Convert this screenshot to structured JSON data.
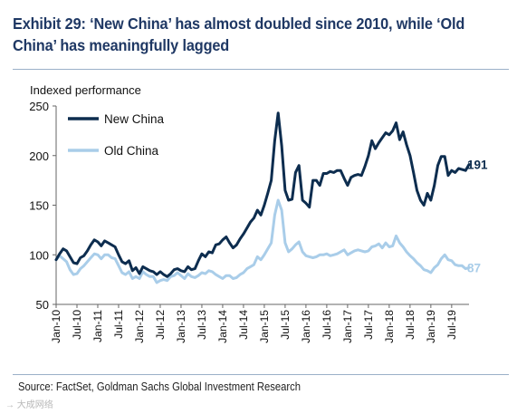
{
  "title": "Exhibit 29: ‘New China’ has almost doubled since 2010, while ‘Old China’ has meaningfully lagged",
  "source": "Source: FactSet, Goldman Sachs Global Investment Research",
  "watermark": "→ 大成网络",
  "colors": {
    "new_china": "#0d2d4f",
    "old_china": "#a9cde9",
    "text": "#1f3864"
  },
  "chart_data": {
    "type": "line",
    "title": "",
    "ylabel": "Indexed performance",
    "xlabel": "",
    "ylim": [
      50,
      250
    ],
    "yticks": [
      50,
      100,
      150,
      200,
      250
    ],
    "xtick_labels": [
      "Jan-10",
      "Jul-10",
      "Jan-11",
      "Jul-11",
      "Jan-12",
      "Jul-12",
      "Jan-13",
      "Jul-13",
      "Jan-14",
      "Jul-14",
      "Jan-15",
      "Jul-15",
      "Jan-16",
      "Jul-16",
      "Jan-17",
      "Jul-17",
      "Jan-18",
      "Jul-18",
      "Jan-19",
      "Jul-19"
    ],
    "legend_position": "top-left",
    "grid": false,
    "x_start": "Jan-10",
    "x_step": "1 month",
    "series": [
      {
        "name": "New China",
        "end_label": "191",
        "values": [
          95,
          101,
          106,
          104,
          98,
          92,
          91,
          97,
          99,
          104,
          110,
          115,
          113,
          109,
          114,
          112,
          110,
          108,
          100,
          93,
          91,
          94,
          84,
          87,
          81,
          88,
          86,
          84,
          83,
          80,
          83,
          80,
          78,
          81,
          85,
          86,
          84,
          83,
          88,
          85,
          86,
          94,
          101,
          98,
          103,
          102,
          110,
          111,
          115,
          118,
          112,
          107,
          110,
          116,
          121,
          127,
          133,
          137,
          145,
          140,
          150,
          162,
          175,
          215,
          243,
          210,
          165,
          155,
          156,
          183,
          190,
          155,
          152,
          148,
          175,
          175,
          170,
          182,
          182,
          184,
          183,
          185,
          185,
          177,
          170,
          178,
          180,
          181,
          180,
          189,
          200,
          215,
          207,
          213,
          218,
          223,
          221,
          225,
          233,
          216,
          224,
          211,
          200,
          183,
          165,
          155,
          150,
          162,
          155,
          170,
          190,
          199,
          199,
          180,
          185,
          183,
          187,
          186,
          185,
          191
        ]
      },
      {
        "name": "Old China",
        "end_label": "87",
        "values": [
          95,
          99,
          96,
          93,
          85,
          80,
          81,
          86,
          89,
          93,
          97,
          101,
          100,
          96,
          100,
          100,
          97,
          96,
          89,
          82,
          80,
          83,
          76,
          78,
          76,
          83,
          80,
          78,
          78,
          72,
          74,
          75,
          74,
          78,
          79,
          82,
          79,
          76,
          81,
          78,
          77,
          79,
          82,
          81,
          84,
          83,
          80,
          78,
          76,
          79,
          79,
          76,
          77,
          80,
          82,
          86,
          88,
          90,
          98,
          95,
          100,
          106,
          112,
          140,
          155,
          145,
          112,
          103,
          106,
          110,
          113,
          103,
          99,
          98,
          97,
          98,
          100,
          100,
          101,
          99,
          100,
          101,
          103,
          105,
          100,
          102,
          104,
          105,
          104,
          103,
          104,
          108,
          109,
          111,
          107,
          112,
          108,
          109,
          119,
          112,
          108,
          103,
          99,
          96,
          92,
          89,
          85,
          84,
          82,
          87,
          90,
          96,
          100,
          95,
          94,
          90,
          89,
          89,
          86,
          87
        ]
      }
    ]
  }
}
